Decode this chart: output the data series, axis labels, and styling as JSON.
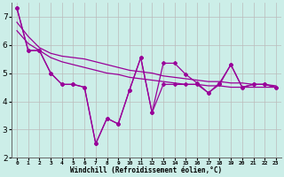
{
  "xlabel": "Windchill (Refroidissement éolien,°C)",
  "bg_color": "#cceee8",
  "line_color": "#990099",
  "grid_color": "#bbbbbb",
  "x": [
    0,
    1,
    2,
    3,
    4,
    5,
    6,
    7,
    8,
    9,
    10,
    11,
    12,
    13,
    14,
    15,
    16,
    17,
    18,
    19,
    20,
    21,
    22,
    23
  ],
  "y_zigzag": [
    7.3,
    5.8,
    5.8,
    5.0,
    4.6,
    4.6,
    4.5,
    2.5,
    3.4,
    3.2,
    4.4,
    5.55,
    3.6,
    4.6,
    4.6,
    4.6,
    4.6,
    4.3,
    4.6,
    5.3,
    4.5,
    4.6,
    4.6,
    4.5
  ],
  "y_smooth": [
    7.3,
    5.8,
    5.8,
    5.0,
    4.6,
    4.6,
    4.5,
    2.5,
    3.4,
    3.2,
    4.4,
    5.55,
    3.6,
    5.35,
    5.35,
    4.95,
    4.65,
    4.3,
    4.65,
    5.3,
    4.5,
    4.6,
    4.6,
    4.5
  ],
  "y_trend1": [
    6.8,
    6.3,
    5.9,
    5.7,
    5.6,
    5.55,
    5.5,
    5.4,
    5.3,
    5.2,
    5.1,
    5.05,
    5.0,
    4.9,
    4.85,
    4.8,
    4.75,
    4.7,
    4.7,
    4.65,
    4.65,
    4.6,
    4.6,
    4.55
  ],
  "y_trend2": [
    6.5,
    6.05,
    5.8,
    5.55,
    5.4,
    5.3,
    5.2,
    5.1,
    5.0,
    4.95,
    4.85,
    4.8,
    4.75,
    4.7,
    4.65,
    4.6,
    4.6,
    4.55,
    4.55,
    4.5,
    4.5,
    4.5,
    4.5,
    4.5
  ],
  "ylim": [
    2,
    7.5
  ],
  "yticks": [
    2,
    3,
    4,
    5,
    6,
    7
  ],
  "xlim": [
    -0.5,
    23.5
  ]
}
